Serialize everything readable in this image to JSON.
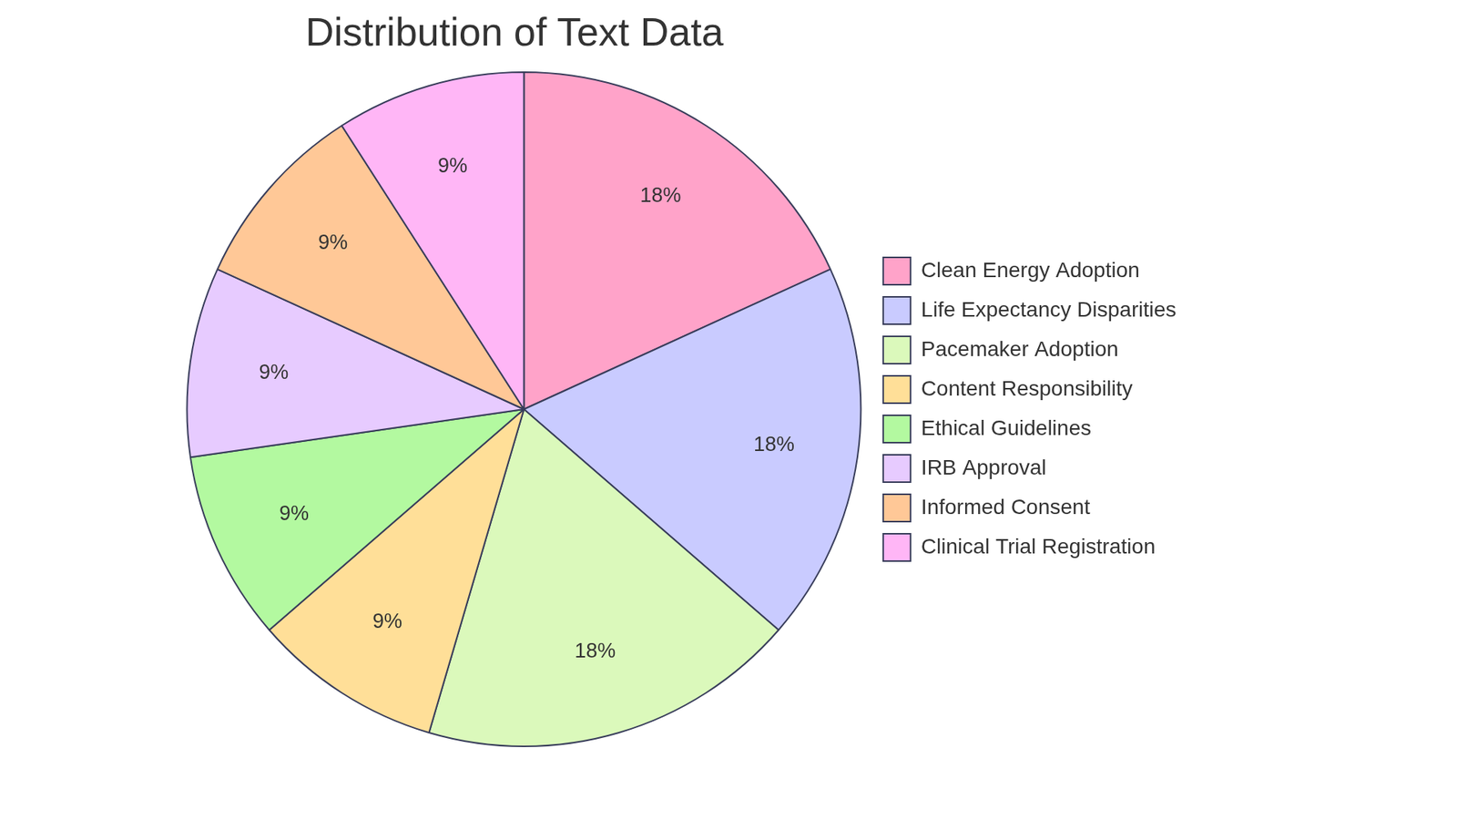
{
  "chart_data": {
    "type": "pie",
    "title": "Distribution of Text Data",
    "categories": [
      "Clean Energy Adoption",
      "Life Expectancy Disparities",
      "Pacemaker Adoption",
      "Content Responsibility",
      "Ethical Guidelines",
      "IRB Approval",
      "Informed Consent",
      "Clinical Trial Registration"
    ],
    "values": [
      18,
      18,
      18,
      9,
      9,
      9,
      9,
      9
    ],
    "value_labels": [
      "18%",
      "18%",
      "18%",
      "9%",
      "9%",
      "9%",
      "9%",
      "9%"
    ],
    "colors": [
      "#ffa3c9",
      "#c9cbff",
      "#dbf9bb",
      "#ffdf98",
      "#b3f9a0",
      "#e7cbff",
      "#ffc897",
      "#ffb6f6"
    ],
    "data_labels": true,
    "legend": "right"
  }
}
